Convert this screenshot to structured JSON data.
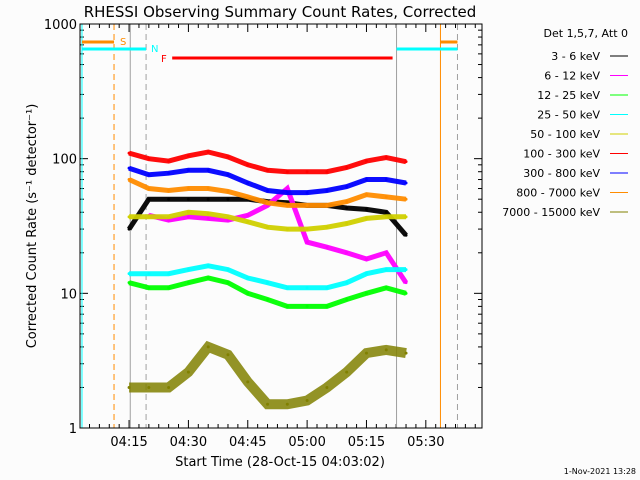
{
  "chart_data": {
    "type": "line",
    "title": "RHESSI Observing Summary Count Rates, Corrected",
    "xlabel": "Start Time (28-Oct-15 04:03:02)",
    "ylabel": "Corrected Count Rate (s⁻¹ detector⁻¹)",
    "x_units": "minutes after 04:00 UT",
    "xlim": [
      2.6,
      104.2
    ],
    "ylim": [
      1,
      1000
    ],
    "yscale": "log",
    "x_ticks": [
      {
        "v": 15,
        "label": "04:15"
      },
      {
        "v": 30,
        "label": "04:30"
      },
      {
        "v": 45,
        "label": "04:45"
      },
      {
        "v": 60,
        "label": "05:00"
      },
      {
        "v": 75,
        "label": "05:15"
      },
      {
        "v": 90,
        "label": "05:30"
      }
    ],
    "y_ticks": [
      {
        "v": 1,
        "label": "1"
      },
      {
        "v": 10,
        "label": "10"
      },
      {
        "v": 100,
        "label": "100"
      },
      {
        "v": 1000,
        "label": "1000"
      }
    ],
    "legend_title": "Det 1,5,7, Att 0",
    "legend_position": "right",
    "x": [
      15,
      20,
      25,
      30,
      35,
      40,
      45,
      50,
      55,
      60,
      65,
      70,
      75,
      80,
      85
    ],
    "series": [
      {
        "name": "3 - 6 keV",
        "color": "#000000",
        "values": [
          30,
          50,
          50,
          50,
          50,
          50,
          50,
          48,
          47,
          45,
          45,
          43,
          42,
          40,
          27
        ]
      },
      {
        "name": "6 - 12 keV",
        "color": "#ff00ff",
        "values": [
          null,
          38,
          35,
          37,
          36,
          35,
          38,
          45,
          60,
          24,
          22,
          20,
          18,
          20,
          12
        ]
      },
      {
        "name": "12 - 25 keV",
        "color": "#00ff00",
        "values": [
          12,
          11,
          11,
          12,
          13,
          12,
          10,
          9,
          8,
          8,
          8,
          9,
          10,
          11,
          10
        ]
      },
      {
        "name": "25 - 50 keV",
        "color": "#00ffff",
        "values": [
          14,
          14,
          14,
          15,
          16,
          15,
          13,
          12,
          11,
          11,
          11,
          12,
          14,
          15,
          15
        ]
      },
      {
        "name": "50 - 100 keV",
        "color": "#d0d000",
        "values": [
          37,
          37,
          37,
          40,
          39,
          37,
          34,
          31,
          30,
          30,
          31,
          33,
          36,
          37,
          37
        ]
      },
      {
        "name": "100 - 300 keV",
        "color": "#ff0000",
        "values": [
          110,
          100,
          96,
          105,
          112,
          103,
          90,
          82,
          80,
          80,
          80,
          86,
          96,
          102,
          95
        ]
      },
      {
        "name": "300 - 800 keV",
        "color": "#0000ff",
        "values": [
          85,
          76,
          78,
          82,
          82,
          76,
          66,
          58,
          56,
          56,
          58,
          62,
          70,
          70,
          66
        ]
      },
      {
        "name": "800 - 7000 keV",
        "color": "#ff8c00",
        "values": [
          70,
          60,
          58,
          60,
          60,
          57,
          52,
          47,
          45,
          45,
          45,
          48,
          54,
          52,
          50
        ]
      },
      {
        "name": "7000 - 15000 keV",
        "color": "#808000",
        "values": [
          2,
          2,
          2,
          2.6,
          4,
          3.5,
          2.2,
          1.5,
          1.5,
          1.6,
          2,
          2.6,
          3.6,
          3.8,
          3.6
        ]
      }
    ],
    "state_bars": [
      {
        "label": "S",
        "color": "#ff8c00",
        "ranges": [
          [
            3.1,
            11.2
          ],
          [
            93.7,
            98
          ]
        ]
      },
      {
        "label": "N",
        "color": "#00ffff",
        "ranges": [
          [
            3.1,
            19.3
          ],
          [
            82.6,
            98
          ]
        ]
      },
      {
        "label": "F",
        "color": "#ff0000",
        "ranges": [
          [
            25.9,
            81.6
          ]
        ]
      }
    ],
    "markers": [
      {
        "t": 3.1,
        "color": "#00ffff",
        "dash": false
      },
      {
        "t": 11.2,
        "color": "#ff8c00",
        "dash": true
      },
      {
        "t": 15.3,
        "color": "#a0a0a0",
        "dash": false
      },
      {
        "t": 19.3,
        "color": "#a0a0a0",
        "dash": true
      },
      {
        "t": 82.6,
        "color": "#a0a0a0",
        "dash": false
      },
      {
        "t": 93.7,
        "color": "#ff8c00",
        "dash": false
      },
      {
        "t": 98,
        "color": "#a0a0a0",
        "dash": true
      }
    ]
  },
  "footer": {
    "timestamp": "1-Nov-2021 13:28"
  }
}
